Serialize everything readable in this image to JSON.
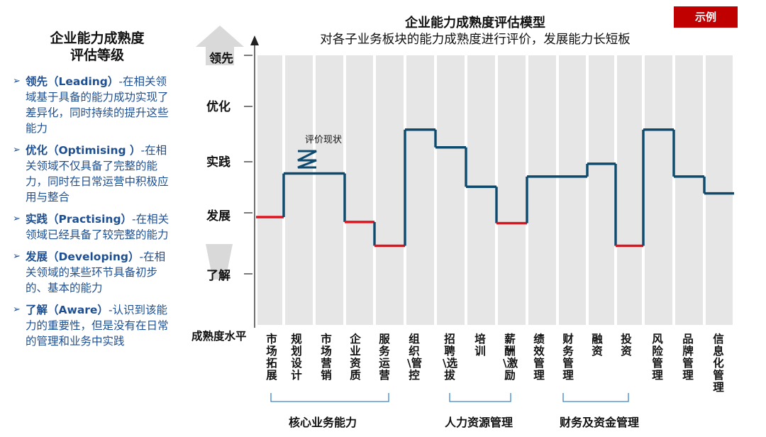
{
  "left_panel": {
    "title_line1": "企业能力成熟度",
    "title_line2": "评估等级",
    "levels": [
      {
        "name": "领先（Leading）",
        "desc": "-在相关领域基于具备的能力成功实现了差异化，同时持续的提升这些能力"
      },
      {
        "name": "优化（Optimising ）",
        "desc": "-在相关领域不仅具备了完整的能力，同时在日常运营中积极应用与整合"
      },
      {
        "name": "实践（Practising）",
        "desc": "-在相关领域已经具备了较完整的能力"
      },
      {
        "name": "发展（Developing）",
        "desc": "-在相关领域的某些环节具备初步的、基本的能力"
      },
      {
        "name": "了解（Aware）",
        "desc": "-认识到该能力的重要性，但是没有在日常的管理和业务中实践"
      }
    ]
  },
  "header": {
    "title": "企业能力成熟度评估模型",
    "subtitle": "对各子业务板块的能力成熟度进行评价，发展能力长短板",
    "badge": "示例"
  },
  "chart_data": {
    "type": "line",
    "y_levels": [
      "了解",
      "发展",
      "实践",
      "优化",
      "领先"
    ],
    "y_axis_name": "成熟度水平",
    "categories": [
      "市场拓展",
      "规划设计",
      "市场营销",
      "企业资质",
      "服务运营",
      "组织\\管控",
      "招聘\\选拔",
      "培训",
      "薪酬\\激励",
      "绩效管理",
      "财务管理",
      "融资",
      "投资",
      "风险管理",
      "品牌管理",
      "信息化管理"
    ],
    "values": [
      1.93,
      2.77,
      2.77,
      1.85,
      1.46,
      3.58,
      3.26,
      2.51,
      1.83,
      2.71,
      2.71,
      2.96,
      1.46,
      3.58,
      2.71,
      2.38
    ],
    "highlight_low": [
      true,
      false,
      false,
      true,
      true,
      false,
      false,
      false,
      true,
      false,
      false,
      false,
      true,
      false,
      false,
      false
    ],
    "colors": {
      "line": "#0e4a6e",
      "low": "#e0141e",
      "band": "#e6e6e6"
    },
    "annotation": "评价现状",
    "groups": [
      {
        "name": "核心业务能力",
        "from": 0,
        "to": 4
      },
      {
        "name": "人力资源管理",
        "from": 6,
        "to": 8
      },
      {
        "name": "财务及资金管理",
        "from": 10,
        "to": 12
      }
    ]
  }
}
